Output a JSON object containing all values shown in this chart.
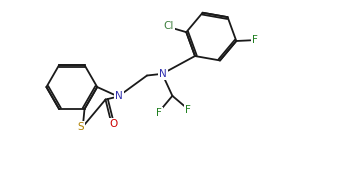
{
  "background_color": "#ffffff",
  "line_color": "#1a1a1a",
  "atom_colors": {
    "N": "#3030b0",
    "S": "#b08000",
    "O": "#cc0000",
    "F": "#208020",
    "Cl": "#408040",
    "C": "#1a1a1a"
  },
  "figsize": [
    3.4,
    1.91
  ],
  "dpi": 100
}
